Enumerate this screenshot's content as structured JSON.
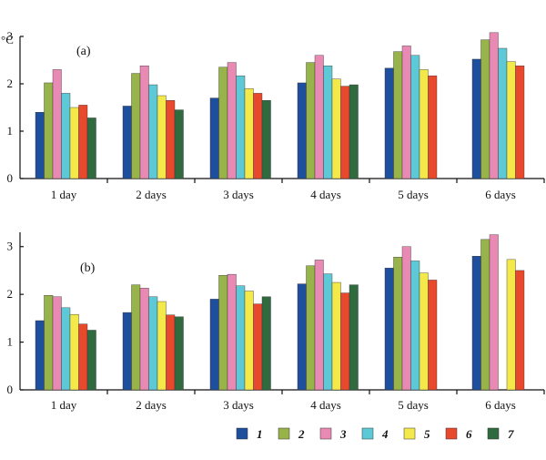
{
  "chart_data": [
    {
      "type": "bar",
      "panel_label": "(a)",
      "unit": "°C",
      "categories": [
        "1  day",
        "2  days",
        "3  days",
        "4  days",
        "5  days",
        "6  days"
      ],
      "ylim": [
        0,
        3
      ],
      "yticks": [
        0,
        1,
        2,
        3
      ],
      "ytick_labels": [
        "0",
        "1",
        "2",
        "3"
      ],
      "grid": false,
      "series": [
        {
          "name": "1",
          "color": "#1f4e9c",
          "values": [
            1.4,
            1.53,
            1.7,
            2.02,
            2.33,
            2.52
          ]
        },
        {
          "name": "2",
          "color": "#97b34a",
          "values": [
            2.02,
            2.22,
            2.35,
            2.45,
            2.68,
            2.93
          ]
        },
        {
          "name": "3",
          "color": "#e88ab3",
          "values": [
            2.3,
            2.38,
            2.45,
            2.6,
            2.8,
            3.08
          ]
        },
        {
          "name": "4",
          "color": "#5ec9d6",
          "values": [
            1.8,
            1.98,
            2.17,
            2.38,
            2.6,
            2.75
          ]
        },
        {
          "name": "5",
          "color": "#f4e94a",
          "values": [
            1.5,
            1.75,
            1.9,
            2.1,
            2.3,
            2.47
          ]
        },
        {
          "name": "6",
          "color": "#e8482c",
          "values": [
            1.55,
            1.65,
            1.8,
            1.95,
            2.17,
            2.38
          ]
        },
        {
          "name": "7",
          "color": "#2f6b3f",
          "values": [
            1.28,
            1.45,
            1.65,
            1.98,
            null,
            null
          ]
        }
      ]
    },
    {
      "type": "bar",
      "panel_label": "(b)",
      "unit": "",
      "categories": [
        "1  day",
        "2  days",
        "3  days",
        "4  days",
        "5  days",
        "6  days"
      ],
      "ylim": [
        0,
        3.3
      ],
      "yticks": [
        0,
        1,
        2,
        3
      ],
      "ytick_labels": [
        "0",
        "1",
        "2",
        "3"
      ],
      "grid": false,
      "series": [
        {
          "name": "1",
          "color": "#1f4e9c",
          "values": [
            1.45,
            1.62,
            1.9,
            2.22,
            2.55,
            2.8
          ]
        },
        {
          "name": "2",
          "color": "#97b34a",
          "values": [
            1.98,
            2.2,
            2.4,
            2.6,
            2.78,
            3.15
          ]
        },
        {
          "name": "3",
          "color": "#e88ab3",
          "values": [
            1.95,
            2.13,
            2.42,
            2.72,
            3.0,
            3.25
          ]
        },
        {
          "name": "4",
          "color": "#5ec9d6",
          "values": [
            1.72,
            1.95,
            2.18,
            2.43,
            2.7,
            null
          ]
        },
        {
          "name": "5",
          "color": "#f4e94a",
          "values": [
            1.58,
            1.85,
            2.07,
            2.25,
            2.45,
            2.73
          ]
        },
        {
          "name": "6",
          "color": "#e8482c",
          "values": [
            1.38,
            1.57,
            1.8,
            2.03,
            2.3,
            2.5
          ]
        },
        {
          "name": "7",
          "color": "#2f6b3f",
          "values": [
            1.25,
            1.53,
            1.95,
            2.2,
            null,
            null
          ]
        }
      ]
    }
  ],
  "legend": {
    "placement": "bottom-right",
    "items": [
      {
        "label": "1",
        "color": "#1f4e9c"
      },
      {
        "label": "2",
        "color": "#97b34a"
      },
      {
        "label": "3",
        "color": "#e88ab3"
      },
      {
        "label": "4",
        "color": "#5ec9d6"
      },
      {
        "label": "5",
        "color": "#f4e94a"
      },
      {
        "label": "6",
        "color": "#e8482c"
      },
      {
        "label": "7",
        "color": "#2f6b3f"
      }
    ]
  }
}
